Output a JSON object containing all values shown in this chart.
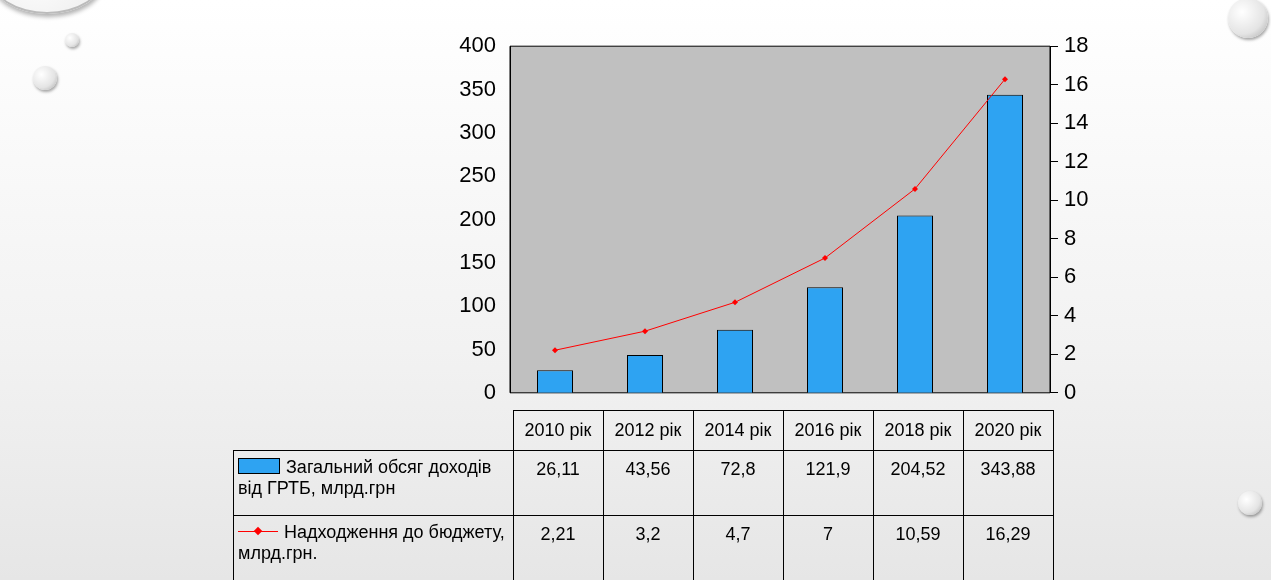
{
  "chart_data": {
    "type": "bar",
    "categories": [
      "2010 рік",
      "2012 рік",
      "2014 рік",
      "2016 рік",
      "2018 рік",
      "2020 рік"
    ],
    "series": [
      {
        "name": "Загальний обсяг доходів від ГРТБ, млрд.грн",
        "color": "#2ea3f2",
        "values": [
          26.11,
          43.56,
          72.8,
          121.9,
          204.52,
          343.88
        ],
        "value_labels": [
          "26,11",
          "43,56",
          "72,8",
          "121,9",
          "204,52",
          "343,88"
        ]
      },
      {
        "name": "Надходження до бюджету, млрд.грн.",
        "type": "line",
        "axis": "y2",
        "color": "#ff0000",
        "marker": "diamond",
        "values": [
          2.21,
          3.2,
          4.7,
          7,
          10.59,
          16.29
        ],
        "value_labels": [
          "2,21",
          "3,2",
          "4,7",
          "7",
          "10,59",
          "16,29"
        ]
      }
    ],
    "ylim": [
      0,
      400
    ],
    "yticks": [
      0,
      50,
      100,
      150,
      200,
      250,
      300,
      350,
      400
    ],
    "y2lim": [
      0,
      18
    ],
    "y2ticks": [
      0,
      2,
      4,
      6,
      8,
      10,
      12,
      14,
      16,
      18
    ],
    "grid": false,
    "legend": "bottom"
  }
}
